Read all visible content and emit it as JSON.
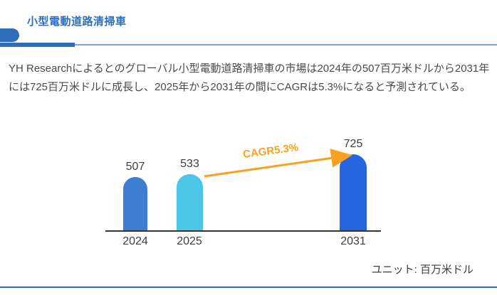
{
  "header": {
    "title": "小型電動道路清掃車"
  },
  "summary": {
    "text": "YH Researchによるとのグローバル小型電動道路清掃車の市場は2024年の507百万米ドルから2031年には725百万米ドルに成長し、2025年から2031年の間にCAGRは5.3%になると予測されている。"
  },
  "footer": {
    "unit_label": "ユニット: 百万米ドル"
  },
  "colors": {
    "title_blue": "#2a6fc0",
    "accent_blue": "#2e6db8",
    "divider_light_blue": "#7aa4d8",
    "bottom_line_blue": "#2e6db6",
    "paragraph_gray": "#4a4a4a",
    "text_dark": "#3d3d3d",
    "axis_dark": "#333333",
    "arrow_orange": "#f9a11f"
  },
  "chart_data": {
    "type": "bar",
    "title": "",
    "categories": [
      "2024",
      "2025",
      "2031"
    ],
    "values": [
      507,
      533,
      725
    ],
    "bar_colors": [
      "#3d7dd2",
      "#4bc6e8",
      "#2565e0"
    ],
    "annotation": "CAGR5.3%",
    "annotation_from": "2025",
    "annotation_to": "2031",
    "unit": "百万米ドル",
    "xlabel": "",
    "ylabel": "",
    "ylim": [
      0,
      800
    ],
    "grid": false,
    "legend": false,
    "rounded_bar_tops": true
  }
}
